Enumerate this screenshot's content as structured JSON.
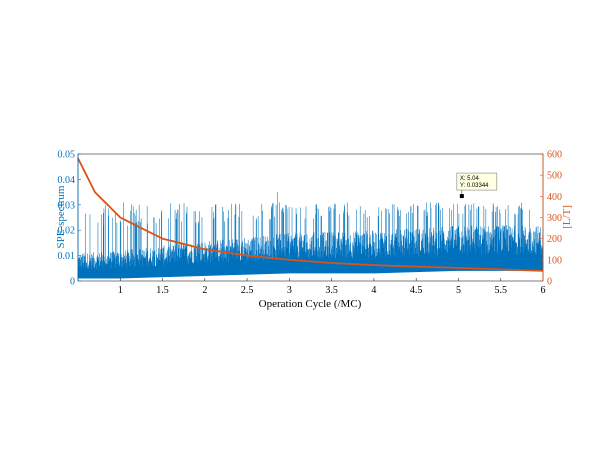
{
  "chart_data": {
    "type": "line",
    "title": "",
    "xlabel": "Operation Cycle (/MC)",
    "xlim": [
      0.5,
      6
    ],
    "x_ticks": [
      "1",
      "1.5",
      "2",
      "2.5",
      "3",
      "3.5",
      "4",
      "4.5",
      "5",
      "5.5",
      "6"
    ],
    "grid": false,
    "legend": "none",
    "left_axis": {
      "label": "SPE-spectrum",
      "color": "#0072BD",
      "ylim": [
        0,
        0.05
      ],
      "ticks": [
        "0",
        "0.01",
        "0.02",
        "0.03",
        "0.04",
        "0.05"
      ]
    },
    "right_axis": {
      "label": "[L/T]",
      "color": "#D95319",
      "ylim": [
        0,
        600
      ],
      "ticks": [
        "0",
        "100",
        "200",
        "300",
        "400",
        "500",
        "600"
      ]
    },
    "series": [
      {
        "axis": "left",
        "style": "dense spikes",
        "x_range": [
          0.5,
          6
        ],
        "baseline_envelope": {
          "x": [
            0.5,
            1,
            2,
            3,
            4,
            5,
            6
          ],
          "y_low": [
            0.001,
            0.001,
            0.002,
            0.003,
            0.003,
            0.004,
            0.004
          ],
          "y_high": [
            0.011,
            0.012,
            0.016,
            0.019,
            0.02,
            0.022,
            0.022
          ]
        },
        "typical_spike_max": 0.031,
        "largest_spike": 0.035
      },
      {
        "axis": "right",
        "x": [
          0.5,
          0.7,
          1,
          1.5,
          2,
          2.5,
          3,
          3.5,
          4,
          4.5,
          5,
          5.5,
          6
        ],
        "y": [
          580,
          420,
          300,
          200,
          150,
          120,
          100,
          85,
          75,
          68,
          62,
          55,
          48
        ]
      }
    ],
    "datatip": {
      "x": 5.04,
      "y": 0.03344,
      "x_text": "X: 5.04",
      "y_text": "Y: 0.03344"
    }
  }
}
